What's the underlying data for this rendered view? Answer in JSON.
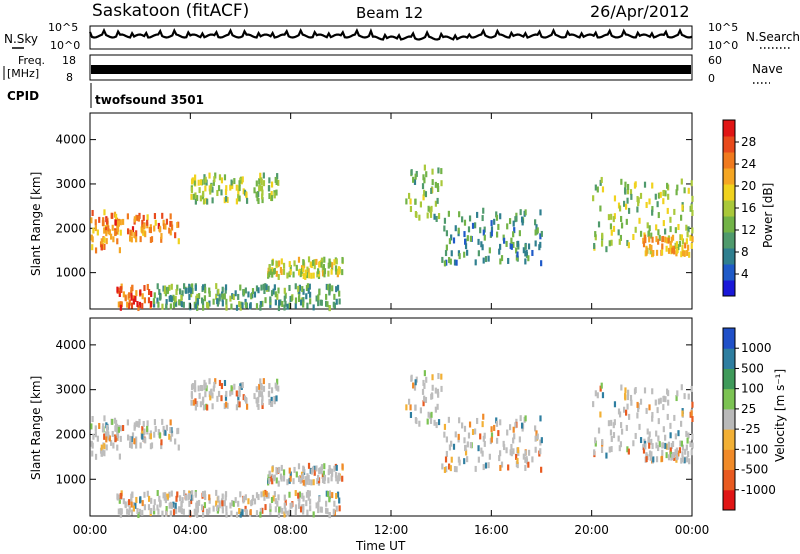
{
  "header": {
    "station": "Saskatoon (fitACF)",
    "beam": "Beam 12",
    "date": "26/Apr/2012"
  },
  "top_panels": {
    "nsky_label": "N.Sky",
    "nsearch_label": "N.Search",
    "freq_label_1": "Freq.",
    "freq_label_2": "[MHz]",
    "nave_label": "Nave",
    "cpid_label": "CPID",
    "cpid_value": "twofsound 3501",
    "nsky_ticks": [
      "10^5",
      "10^0"
    ],
    "nsearch_ticks": [
      "10^5",
      "10^0"
    ],
    "freq_ticks": [
      "18",
      "8"
    ],
    "nave_ticks": [
      "60",
      "0"
    ]
  },
  "power_colorbar": {
    "label": "Power [dB]",
    "ticks": [
      "28",
      "24",
      "20",
      "16",
      "12",
      "8",
      "4"
    ],
    "colors": [
      "#1a18d8",
      "#1f5ac8",
      "#2f7f8f",
      "#4f9a6c",
      "#72b347",
      "#a9c83a",
      "#f0d21e",
      "#f5a623",
      "#f07a1e",
      "#e84a1c",
      "#e01515"
    ]
  },
  "velocity_colorbar": {
    "label": "Velocity [m s⁻¹]",
    "ticks": [
      "1000",
      "500",
      "100",
      "25",
      "-25",
      "-100",
      "-500",
      "-1000"
    ],
    "colors": [
      "#2050c8",
      "#2e7ea0",
      "#3f9a5a",
      "#7cc353",
      "#b9b9b9",
      "#f2b035",
      "#f08a28",
      "#e85a20",
      "#e01515"
    ]
  },
  "chart_data": [
    {
      "type": "heatmap",
      "name": "power",
      "ylabel": "Slant Range [km]",
      "xlabel": "Time UT",
      "x_ticks": [
        "00:00",
        "04:00",
        "08:00",
        "12:00",
        "16:00",
        "20:00",
        "00:00"
      ],
      "y_ticks": [
        "1000",
        "2000",
        "3000",
        "4000"
      ],
      "xlim": [
        0,
        24
      ],
      "ylim": [
        180,
        4600
      ],
      "scale_label": "Power [dB]",
      "bands": [
        {
          "t0": 0.0,
          "t1": 1.2,
          "r0": 1500,
          "r1": 2400,
          "level": 22
        },
        {
          "t0": 0.6,
          "t1": 3.5,
          "r0": 1700,
          "r1": 2300,
          "level": 24
        },
        {
          "t0": 1.0,
          "t1": 2.5,
          "r0": 200,
          "r1": 700,
          "level": 26
        },
        {
          "t0": 2.5,
          "t1": 10.0,
          "r0": 200,
          "r1": 700,
          "level": 10
        },
        {
          "t0": 4.0,
          "t1": 7.5,
          "r0": 2600,
          "r1": 3200,
          "level": 14
        },
        {
          "t0": 7.0,
          "t1": 10.2,
          "r0": 900,
          "r1": 1300,
          "level": 16
        },
        {
          "t0": 12.5,
          "t1": 14.0,
          "r0": 2200,
          "r1": 3400,
          "level": 12
        },
        {
          "t0": 14.0,
          "t1": 18.0,
          "r0": 1200,
          "r1": 2400,
          "level": 8
        },
        {
          "t0": 20.0,
          "t1": 24.0,
          "r0": 1500,
          "r1": 3100,
          "level": 14
        },
        {
          "t0": 22.0,
          "t1": 24.0,
          "r0": 1400,
          "r1": 1800,
          "level": 20
        }
      ]
    },
    {
      "type": "heatmap",
      "name": "velocity",
      "ylabel": "Slant Range [km]",
      "xlabel": "Time UT",
      "x_ticks": [
        "00:00",
        "04:00",
        "08:00",
        "12:00",
        "16:00",
        "20:00",
        "00:00"
      ],
      "y_ticks": [
        "1000",
        "2000",
        "3000",
        "4000"
      ],
      "xlim": [
        0,
        24
      ],
      "ylim": [
        180,
        4600
      ],
      "scale_label": "Velocity [m s⁻¹]"
    }
  ]
}
